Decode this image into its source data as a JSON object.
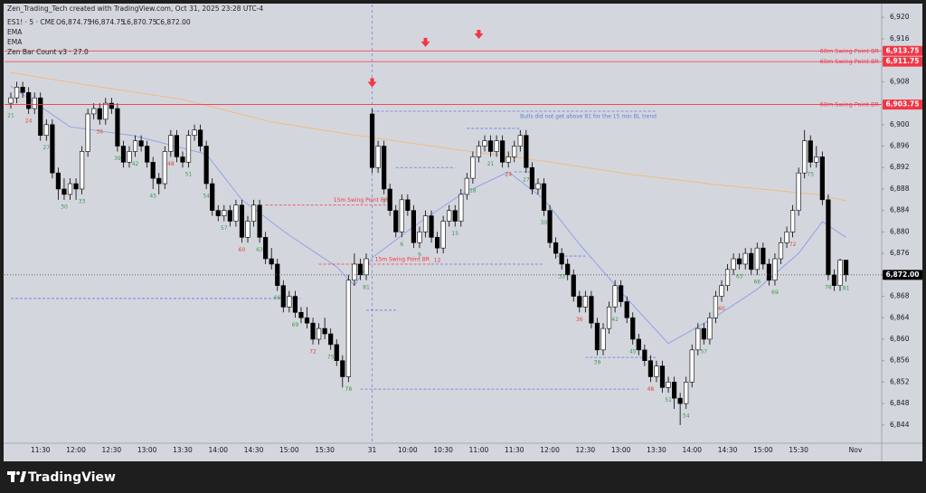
{
  "header": {
    "credit": "Zen_Trading_Tech created with TradingView.com, Oct 31, 2025 23:28 UTC-4",
    "symbol": "ES1! · 5 · CME",
    "ohlc": [
      "O6,874.75",
      "H6,874.75",
      "L6,870.75",
      "C6,872.00"
    ],
    "indicators": [
      "EMA",
      "EMA",
      "Zen Bar Count v3 · 27.0"
    ],
    "brand": "TradingView"
  },
  "chart_data": {
    "type": "candlestick",
    "up_color": "#ffffff",
    "down_color": "#000000",
    "wick_color": "#000000",
    "ylim": [
      6840.6,
      6922.4
    ],
    "yticks": [
      {
        "value": 6844,
        "label": "6,844"
      },
      {
        "value": 6848,
        "label": "6,848"
      },
      {
        "value": 6852,
        "label": "6,852"
      },
      {
        "value": 6856,
        "label": "6,856"
      },
      {
        "value": 6860,
        "label": "6,860"
      },
      {
        "value": 6864,
        "label": "6,864"
      },
      {
        "value": 6868,
        "label": "6,868"
      },
      {
        "value": 6872,
        "label": "6,872"
      },
      {
        "value": 6876,
        "label": "6,876"
      },
      {
        "value": 6880,
        "label": "6,880"
      },
      {
        "value": 6884,
        "label": "6,884"
      },
      {
        "value": 6888,
        "label": "6,888"
      },
      {
        "value": 6892,
        "label": "6,892"
      },
      {
        "value": 6896,
        "label": "6,896"
      },
      {
        "value": 6900,
        "label": "6,900"
      },
      {
        "value": 6904,
        "label": "6,904"
      },
      {
        "value": 6908,
        "label": "6,908"
      },
      {
        "value": 6912,
        "label": "6,912"
      },
      {
        "value": 6916,
        "label": "6,916"
      },
      {
        "value": 6920,
        "label": "6,920"
      }
    ],
    "categories": [
      null,
      null,
      null,
      null,
      null,
      "11:30",
      null,
      null,
      null,
      null,
      null,
      "12:00",
      null,
      null,
      null,
      null,
      null,
      "12:30",
      null,
      null,
      null,
      null,
      null,
      "13:00",
      null,
      null,
      null,
      null,
      null,
      "13:30",
      null,
      null,
      null,
      null,
      null,
      "14:00",
      null,
      null,
      null,
      null,
      null,
      "14:30",
      null,
      null,
      null,
      null,
      null,
      "15:00",
      null,
      null,
      null,
      null,
      null,
      "15:30",
      null,
      null,
      null,
      null,
      null,
      null,
      null,
      "31",
      null,
      null,
      null,
      null,
      null,
      "10:00",
      null,
      null,
      null,
      null,
      null,
      "10:30",
      null,
      null,
      null,
      null,
      null,
      "11:00",
      null,
      null,
      null,
      null,
      null,
      "11:30",
      null,
      null,
      null,
      null,
      null,
      "12:00",
      null,
      null,
      null,
      null,
      null,
      "12:30",
      null,
      null,
      null,
      null,
      null,
      "13:00",
      null,
      null,
      null,
      null,
      null,
      "13:30",
      null,
      null,
      null,
      null,
      null,
      "14:00",
      null,
      null,
      null,
      null,
      null,
      "14:30",
      null,
      null,
      null,
      null,
      null,
      "15:00",
      null,
      null,
      null,
      null,
      null,
      "15:30",
      null,
      null,
      null,
      null,
      null,
      null,
      null,
      null
    ],
    "x_axis_end_label": "Nov",
    "ohlc": [
      [
        6904,
        6906,
        6903,
        6905
      ],
      [
        6905,
        6908,
        6904,
        6907
      ],
      [
        6907,
        6908,
        6905,
        6906
      ],
      [
        6906,
        6907,
        6902,
        6903
      ],
      [
        6903,
        6906,
        6902,
        6905
      ],
      [
        6905,
        6906,
        6897,
        6898
      ],
      [
        6898,
        6901,
        6897,
        6900
      ],
      [
        6900,
        6901,
        6890,
        6891
      ],
      [
        6891,
        6892,
        6886,
        6888
      ],
      [
        6888,
        6890,
        6886,
        6887
      ],
      [
        6887,
        6890,
        6886,
        6889
      ],
      [
        6889,
        6890,
        6886,
        6888
      ],
      [
        6888,
        6896,
        6887,
        6895
      ],
      [
        6895,
        6903,
        6894,
        6902
      ],
      [
        6902,
        6904,
        6901,
        6903
      ],
      [
        6903,
        6904,
        6900,
        6901
      ],
      [
        6901,
        6905,
        6900,
        6904
      ],
      [
        6904,
        6905,
        6902,
        6903
      ],
      [
        6903,
        6904,
        6895,
        6896
      ],
      [
        6896,
        6897,
        6892,
        6893
      ],
      [
        6893,
        6896,
        6892,
        6895
      ],
      [
        6895,
        6898,
        6894,
        6897
      ],
      [
        6897,
        6898,
        6895,
        6896
      ],
      [
        6896,
        6897,
        6892,
        6893
      ],
      [
        6893,
        6894,
        6888,
        6890
      ],
      [
        6890,
        6891,
        6887,
        6889
      ],
      [
        6889,
        6896,
        6888,
        6895
      ],
      [
        6895,
        6899,
        6894,
        6898
      ],
      [
        6898,
        6899,
        6893,
        6894
      ],
      [
        6894,
        6895,
        6892,
        6893
      ],
      [
        6893,
        6899,
        6892,
        6898
      ],
      [
        6898,
        6900,
        6897,
        6899
      ],
      [
        6899,
        6900,
        6895,
        6896
      ],
      [
        6896,
        6897,
        6888,
        6889
      ],
      [
        6889,
        6890,
        6883,
        6884
      ],
      [
        6884,
        6885,
        6882,
        6883
      ],
      [
        6883,
        6885,
        6882,
        6884
      ],
      [
        6884,
        6885,
        6881,
        6882
      ],
      [
        6882,
        6886,
        6881,
        6885
      ],
      [
        6885,
        6886,
        6878,
        6879
      ],
      [
        6879,
        6883,
        6878,
        6882
      ],
      [
        6882,
        6886,
        6881,
        6885
      ],
      [
        6885,
        6886,
        6878,
        6879
      ],
      [
        6879,
        6880,
        6874,
        6875
      ],
      [
        6875,
        6877,
        6873,
        6874
      ],
      [
        6874,
        6875,
        6869,
        6870
      ],
      [
        6870,
        6871,
        6865,
        6866
      ],
      [
        6866,
        6869,
        6865,
        6868
      ],
      [
        6868,
        6869,
        6864,
        6865
      ],
      [
        6865,
        6866,
        6863,
        6864
      ],
      [
        6864,
        6866,
        6862,
        6863
      ],
      [
        6863,
        6864,
        6859,
        6860
      ],
      [
        6860,
        6863,
        6859,
        6862
      ],
      [
        6862,
        6864,
        6860,
        6861
      ],
      [
        6861,
        6862,
        6858,
        6859
      ],
      [
        6859,
        6860,
        6855,
        6856
      ],
      [
        6856,
        6857,
        6851,
        6853
      ],
      [
        6853,
        6872,
        6852,
        6871
      ],
      [
        6871,
        6876,
        6870,
        6874
      ],
      [
        6874,
        6875,
        6871,
        6872
      ],
      [
        6872,
        6876,
        6871,
        6875
      ],
      [
        6902,
        6903,
        6891,
        6892
      ],
      [
        6892,
        6897,
        6891,
        6896
      ],
      [
        6896,
        6897,
        6887,
        6888
      ],
      [
        6888,
        6889,
        6883,
        6884
      ],
      [
        6884,
        6885,
        6879,
        6880
      ],
      [
        6880,
        6887,
        6879,
        6886
      ],
      [
        6886,
        6887,
        6883,
        6884
      ],
      [
        6884,
        6885,
        6877,
        6878
      ],
      [
        6878,
        6881,
        6877,
        6880
      ],
      [
        6880,
        6884,
        6879,
        6883
      ],
      [
        6883,
        6884,
        6878,
        6879
      ],
      [
        6879,
        6880,
        6876,
        6877
      ],
      [
        6877,
        6883,
        6876,
        6882
      ],
      [
        6882,
        6885,
        6881,
        6884
      ],
      [
        6884,
        6885,
        6881,
        6882
      ],
      [
        6882,
        6888,
        6881,
        6887
      ],
      [
        6887,
        6891,
        6886,
        6890
      ],
      [
        6890,
        6895,
        6889,
        6894
      ],
      [
        6894,
        6897,
        6893,
        6896
      ],
      [
        6896,
        6898,
        6895,
        6897
      ],
      [
        6897,
        6898,
        6894,
        6895
      ],
      [
        6895,
        6898,
        6894,
        6897
      ],
      [
        6897,
        6898,
        6892,
        6893
      ],
      [
        6893,
        6895,
        6892,
        6894
      ],
      [
        6894,
        6897,
        6893,
        6896
      ],
      [
        6896,
        6899,
        6895,
        6898
      ],
      [
        6898,
        6899,
        6891,
        6892
      ],
      [
        6892,
        6893,
        6887,
        6888
      ],
      [
        6888,
        6890,
        6887,
        6889
      ],
      [
        6889,
        6890,
        6883,
        6884
      ],
      [
        6884,
        6885,
        6877,
        6878
      ],
      [
        6878,
        6879,
        6875,
        6876
      ],
      [
        6876,
        6877,
        6873,
        6874
      ],
      [
        6874,
        6875,
        6871,
        6872
      ],
      [
        6872,
        6873,
        6867,
        6868
      ],
      [
        6868,
        6869,
        6865,
        6866
      ],
      [
        6866,
        6869,
        6865,
        6868
      ],
      [
        6868,
        6869,
        6862,
        6863
      ],
      [
        6863,
        6864,
        6857,
        6858
      ],
      [
        6858,
        6863,
        6857,
        6862
      ],
      [
        6862,
        6867,
        6861,
        6866
      ],
      [
        6866,
        6871,
        6865,
        6870
      ],
      [
        6870,
        6871,
        6866,
        6867
      ],
      [
        6867,
        6868,
        6863,
        6864
      ],
      [
        6864,
        6865,
        6859,
        6860
      ],
      [
        6860,
        6861,
        6857,
        6858
      ],
      [
        6858,
        6859,
        6855,
        6856
      ],
      [
        6856,
        6857,
        6852,
        6853
      ],
      [
        6853,
        6856,
        6852,
        6855
      ],
      [
        6855,
        6856,
        6850,
        6851
      ],
      [
        6851,
        6853,
        6850,
        6852
      ],
      [
        6852,
        6853,
        6847,
        6849
      ],
      [
        6849,
        6850,
        6844,
        6848
      ],
      [
        6848,
        6853,
        6847,
        6852
      ],
      [
        6852,
        6859,
        6851,
        6858
      ],
      [
        6858,
        6863,
        6857,
        6862
      ],
      [
        6862,
        6863,
        6859,
        6860
      ],
      [
        6860,
        6865,
        6859,
        6864
      ],
      [
        6864,
        6869,
        6863,
        6868
      ],
      [
        6868,
        6871,
        6867,
        6870
      ],
      [
        6870,
        6874,
        6869,
        6873
      ],
      [
        6873,
        6876,
        6872,
        6875
      ],
      [
        6875,
        6876,
        6873,
        6874
      ],
      [
        6874,
        6877,
        6873,
        6876
      ],
      [
        6876,
        6877,
        6872,
        6873
      ],
      [
        6873,
        6878,
        6872,
        6877
      ],
      [
        6877,
        6878,
        6873,
        6874
      ],
      [
        6874,
        6875,
        6870,
        6871
      ],
      [
        6871,
        6876,
        6870,
        6875
      ],
      [
        6875,
        6879,
        6874,
        6878
      ],
      [
        6878,
        6881,
        6877,
        6880
      ],
      [
        6880,
        6885,
        6879,
        6884
      ],
      [
        6884,
        6892,
        6883,
        6891
      ],
      [
        6891,
        6899,
        6890,
        6897
      ],
      [
        6897,
        6898,
        6892,
        6893
      ],
      [
        6893,
        6896,
        6892,
        6894
      ],
      [
        6894,
        6895,
        6885,
        6886
      ],
      [
        6886,
        6887,
        6871,
        6872
      ],
      [
        6872,
        6873,
        6869,
        6870
      ],
      [
        6870,
        6875,
        6869,
        6874.75
      ],
      [
        6874.75,
        6874.75,
        6870.75,
        6872
      ]
    ],
    "ema_lines": [
      {
        "color": "#8fa3e6",
        "x": [
          0,
          10,
          21,
          33,
          39,
          47,
          55,
          58,
          61,
          68,
          76,
          84,
          90,
          96,
          104,
          111,
          119,
          126,
          133,
          137,
          141
        ],
        "values": [
          6907.2,
          6899.6,
          6897.9,
          6894.5,
          6886,
          6879.4,
          6873.5,
          6870,
          6875.2,
          6881,
          6887,
          6891.2,
          6886.1,
          6877.7,
          6867.6,
          6859.2,
          6864.2,
          6869.3,
          6876,
          6881.9,
          6879
        ]
      },
      {
        "color": "#eebb85",
        "x": [
          0,
          14,
          29,
          44,
          59,
          75,
          90,
          105,
          120,
          136,
          141
        ],
        "values": [
          6909.7,
          6907.2,
          6904.7,
          6900.5,
          6897.9,
          6895.4,
          6893.2,
          6890.7,
          6888.7,
          6887,
          6885.8
        ]
      }
    ],
    "levels": [
      {
        "value": 6913.75,
        "label": "6,913.75",
        "text": "60m Swing Point BR"
      },
      {
        "value": 6911.75,
        "label": "6,911.75",
        "text": "60m Swing Point BR"
      },
      {
        "value": 6903.75,
        "label": "6,903.75",
        "text": "60m Swing Point BR"
      }
    ],
    "level_color": "#f23645",
    "last_price": {
      "value": 6872,
      "label": "6,872.00"
    },
    "swing_lines_15m": [
      {
        "price": 6885,
        "x": [
          43,
          64
        ],
        "text": "15m Swing Point BR"
      },
      {
        "price": 6874,
        "x": [
          52,
          71
        ],
        "text": "15m Swing Point BR"
      }
    ],
    "blue_lines": [
      {
        "price": 6902.5,
        "x": [
          61,
          109
        ],
        "text": "Bulls did not get above 81 for the 15 min BL trend"
      },
      {
        "price": 6892,
        "x": [
          65,
          75
        ]
      },
      {
        "price": 6899.3,
        "x": [
          77,
          86
        ]
      },
      {
        "price": 6891.2,
        "x": [
          85,
          88
        ]
      },
      {
        "price": 6874,
        "x": [
          71,
          90
        ]
      },
      {
        "price": 6875.5,
        "x": [
          92,
          97
        ]
      },
      {
        "price": 6867.6,
        "x": [
          0,
          49
        ]
      },
      {
        "price": 6865.4,
        "x": [
          60,
          65
        ]
      },
      {
        "price": 6856.6,
        "x": [
          97,
          109
        ]
      },
      {
        "price": 6850.7,
        "x": [
          59,
          106
        ]
      }
    ],
    "blue_line_color": "#5b7fe0",
    "session_line_x": 61,
    "arrows": {
      "color": "#f23645",
      "x": [
        61,
        70,
        79
      ],
      "y": [
        6907.5,
        6915,
        6916.5
      ]
    },
    "bar_counts": {
      "color": "#3a9a4a",
      "alt_color": "#e0453a",
      "bars": [
        0,
        3,
        6,
        9,
        12,
        15,
        18,
        21,
        24,
        27,
        30,
        33,
        36,
        39,
        42,
        45,
        48,
        51,
        54,
        57,
        60,
        63,
        66,
        69,
        72,
        75,
        78,
        81,
        84,
        87,
        90,
        93,
        96,
        99,
        102,
        105,
        108,
        111,
        114,
        117,
        120,
        123,
        126,
        129,
        132,
        135,
        138,
        141
      ],
      "counts": [
        21,
        24,
        27,
        30,
        33,
        36,
        39,
        42,
        45,
        48,
        51,
        54,
        57,
        60,
        63,
        66,
        69,
        72,
        75,
        78,
        81,
        3,
        6,
        9,
        12,
        15,
        18,
        21,
        24,
        27,
        30,
        33,
        36,
        39,
        42,
        45,
        48,
        51,
        54,
        57,
        60,
        63,
        66,
        69,
        72,
        75,
        78,
        81
      ]
    }
  }
}
